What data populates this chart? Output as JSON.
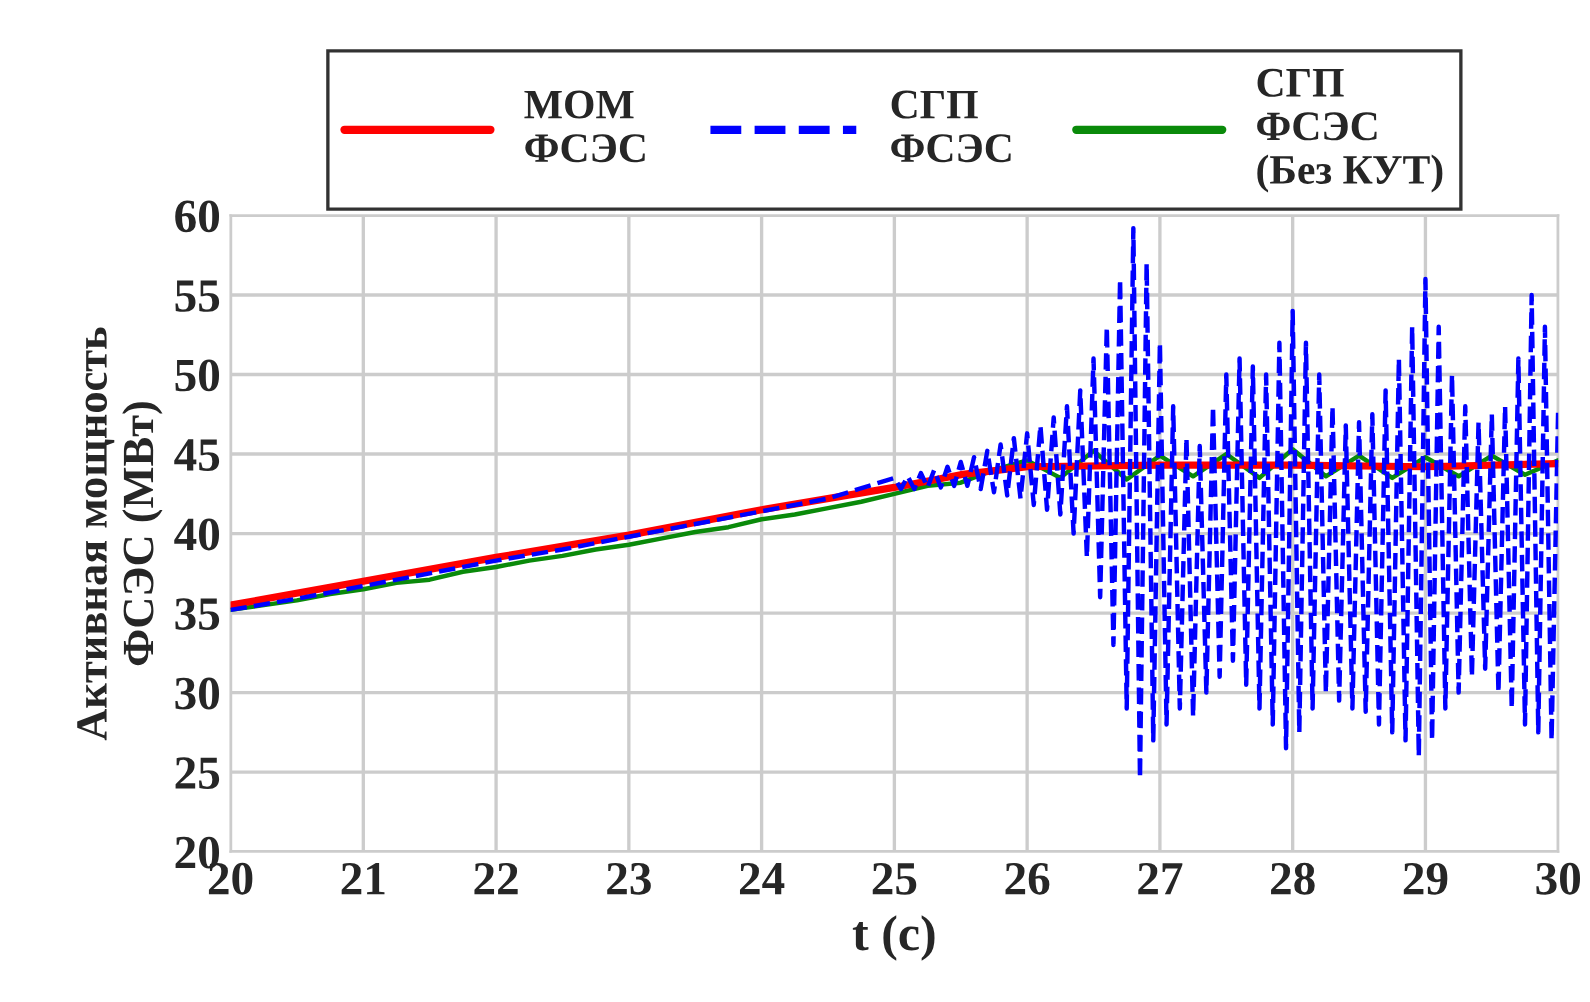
{
  "chart_data": {
    "type": "line",
    "xlabel": "t (c)",
    "ylabel": "Активная мощность\nФСЭС (МВт)",
    "xlim": [
      20,
      30
    ],
    "xticks": [
      20,
      21,
      22,
      23,
      24,
      25,
      26,
      27,
      28,
      29,
      30
    ],
    "ylim": [
      20,
      60
    ],
    "yticks": [
      20,
      25,
      30,
      35,
      40,
      45,
      50,
      55,
      60
    ],
    "grid": true,
    "legend": "top",
    "marker": "none",
    "series": [
      {
        "name": "МОМ\nФСЭС",
        "color": "#ff0000",
        "line_style": "solid",
        "x": [
          20,
          21,
          22,
          23,
          24,
          25,
          25.5,
          26,
          27,
          28,
          29,
          30
        ],
        "values": [
          35.5,
          37.0,
          38.5,
          39.9,
          41.5,
          42.9,
          43.7,
          44.2,
          44.3,
          44.3,
          44.2,
          44.4
        ]
      },
      {
        "name": "СГП\nФСЭС",
        "color": "#0000ff",
        "line_style": "dashed",
        "x": [
          20,
          20.5,
          21,
          21.5,
          22,
          22.5,
          23,
          23.5,
          24,
          24.5,
          25.0,
          25.05,
          25.1,
          25.15,
          25.2,
          25.25,
          25.3,
          25.35,
          25.4,
          25.45,
          25.5,
          25.55,
          25.6,
          25.65,
          25.7,
          25.75,
          25.8,
          25.85,
          25.9,
          25.95,
          26.0,
          26.05,
          26.1,
          26.15,
          26.2,
          26.25,
          26.3,
          26.35,
          26.4,
          26.45,
          26.5,
          26.55,
          26.6,
          26.65,
          26.7,
          26.75,
          26.8,
          26.85,
          26.9,
          26.95,
          27.0,
          27.05,
          27.1,
          27.15,
          27.2,
          27.25,
          27.3,
          27.35,
          27.4,
          27.45,
          27.5,
          27.55,
          27.6,
          27.65,
          27.7,
          27.75,
          27.8,
          27.85,
          27.9,
          27.95,
          28.0,
          28.05,
          28.1,
          28.15,
          28.2,
          28.25,
          28.3,
          28.35,
          28.4,
          28.45,
          28.5,
          28.55,
          28.6,
          28.65,
          28.7,
          28.75,
          28.8,
          28.85,
          28.9,
          28.95,
          29.0,
          29.05,
          29.1,
          29.15,
          29.2,
          29.25,
          29.3,
          29.35,
          29.4,
          29.45,
          29.5,
          29.55,
          29.6,
          29.65,
          29.7,
          29.75,
          29.8,
          29.85,
          29.9,
          29.95,
          30.0
        ],
        "values": [
          35.2,
          35.9,
          36.7,
          37.5,
          38.3,
          39.0,
          39.8,
          40.6,
          41.4,
          42.2,
          43.5,
          42.8,
          43.6,
          42.8,
          43.8,
          42.9,
          44.0,
          42.9,
          44.2,
          43.0,
          44.5,
          43.0,
          44.8,
          42.8,
          45.2,
          42.6,
          45.6,
          42.4,
          46.0,
          42.2,
          46.3,
          41.8,
          46.8,
          41.5,
          47.3,
          41.2,
          48.0,
          40.0,
          49.0,
          38.5,
          51.0,
          36.0,
          53.0,
          33.0,
          56.0,
          29.0,
          59.2,
          24.6,
          57.0,
          27.0,
          52.0,
          28.0,
          48.0,
          29.0,
          46.0,
          28.5,
          45.5,
          30.0,
          48.0,
          31.0,
          50.0,
          32.0,
          51.0,
          30.5,
          50.5,
          29.0,
          50.0,
          28.0,
          52.0,
          26.5,
          54.0,
          27.5,
          52.0,
          29.0,
          50.0,
          30.0,
          48.0,
          29.5,
          46.8,
          29.0,
          47.0,
          28.8,
          47.5,
          28.0,
          49.0,
          27.5,
          51.0,
          27.0,
          53.0,
          26.0,
          56.0,
          27.0,
          53.0,
          29.0,
          50.0,
          30.0,
          48.0,
          31.0,
          47.0,
          31.5,
          47.5,
          30.0,
          48.0,
          29.0,
          51.0,
          28.0,
          55.0,
          27.5,
          53.0,
          27.0,
          48.0
        ]
      },
      {
        "name": "СГП\nФСЭС\n(Без КУТ)",
        "color": "#0a8a0a",
        "line_style": "solid",
        "x": [
          20,
          20.25,
          20.5,
          20.75,
          21,
          21.25,
          21.5,
          21.75,
          22,
          22.25,
          22.5,
          22.75,
          23,
          23.25,
          23.5,
          23.75,
          24,
          24.25,
          24.5,
          24.75,
          25,
          25.25,
          25.5,
          25.75,
          26,
          26.25,
          26.5,
          26.75,
          27,
          27.25,
          27.5,
          27.75,
          28,
          28.25,
          28.5,
          28.75,
          29,
          29.25,
          29.5,
          29.75,
          30
        ],
        "values": [
          35.2,
          35.5,
          35.8,
          36.2,
          36.5,
          36.9,
          37.1,
          37.6,
          37.9,
          38.3,
          38.6,
          39.0,
          39.3,
          39.7,
          40.1,
          40.4,
          40.9,
          41.2,
          41.6,
          42.0,
          42.5,
          43.0,
          43.2,
          44.0,
          44.6,
          43.5,
          45.2,
          43.4,
          44.9,
          43.6,
          45.0,
          43.5,
          45.3,
          43.6,
          44.9,
          43.5,
          44.8,
          43.6,
          44.9,
          43.7,
          44.6
        ]
      }
    ]
  }
}
